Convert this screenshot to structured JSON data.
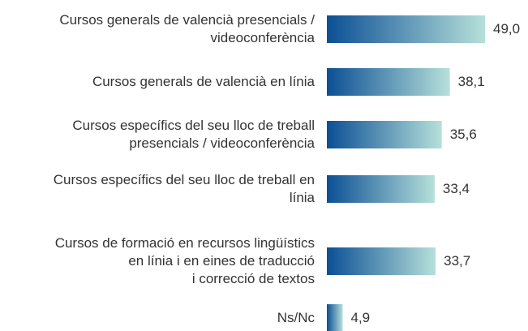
{
  "chart_data": {
    "type": "bar",
    "orientation": "horizontal",
    "categories": [
      "Cursos generals de valencià presencials /\nvideoconferència",
      "Cursos generals de valencià en línia",
      "Cursos específics del seu lloc de treball\npresencials / videoconferència",
      "Cursos específics del seu lloc de treball en\nlínia",
      "Cursos de formació en recursos lingüístics\nen línia i en eines de traducció\ni correcció de textos",
      "Ns/Nc"
    ],
    "values": [
      49.0,
      38.1,
      35.6,
      33.4,
      33.7,
      4.9
    ],
    "value_labels": [
      "49,0",
      "38,1",
      "35,6",
      "33,4",
      "33,7",
      "4,9"
    ],
    "colors": [
      "#0b4f95",
      "#b6e0da"
    ]
  }
}
